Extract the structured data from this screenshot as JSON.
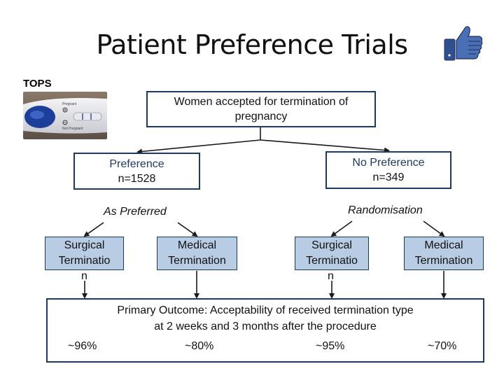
{
  "title": "Patient Preference Trials",
  "tops_label": "TOPS",
  "top_box": {
    "line1": "Women accepted for termination of",
    "line2": "pregnancy"
  },
  "preference": {
    "label": "Preference",
    "n": "n=1528",
    "branch_label": "As Preferred"
  },
  "no_preference": {
    "label": "No Preference",
    "n": "n=349",
    "branch_label": "Randomisation"
  },
  "leaves": [
    {
      "line1": "Surgical",
      "line2": "Terminatio",
      "spill": "n"
    },
    {
      "line1": "Medical",
      "line2": "Termination"
    },
    {
      "line1": "Surgical",
      "line2": "Terminatio",
      "spill": "n"
    },
    {
      "line1": "Medical",
      "line2": "Termination"
    }
  ],
  "outcome": {
    "line1": "Primary Outcome: Acceptability of received termination type",
    "line2": "at 2 weeks and 3 months after the procedure",
    "results": [
      "~96%",
      "~80%",
      "~95%",
      "~70%"
    ]
  },
  "photo_text": {
    "pregnant": "Pregnant",
    "not_pregnant": "Not Pregnant"
  },
  "colors": {
    "box_border": "#1c3a5c",
    "leaf_fill": "#b8cce4",
    "accent_text": "#1f3864",
    "thumb_blue": "#3b5998"
  },
  "icons": [
    "thumbs-up-icon"
  ]
}
